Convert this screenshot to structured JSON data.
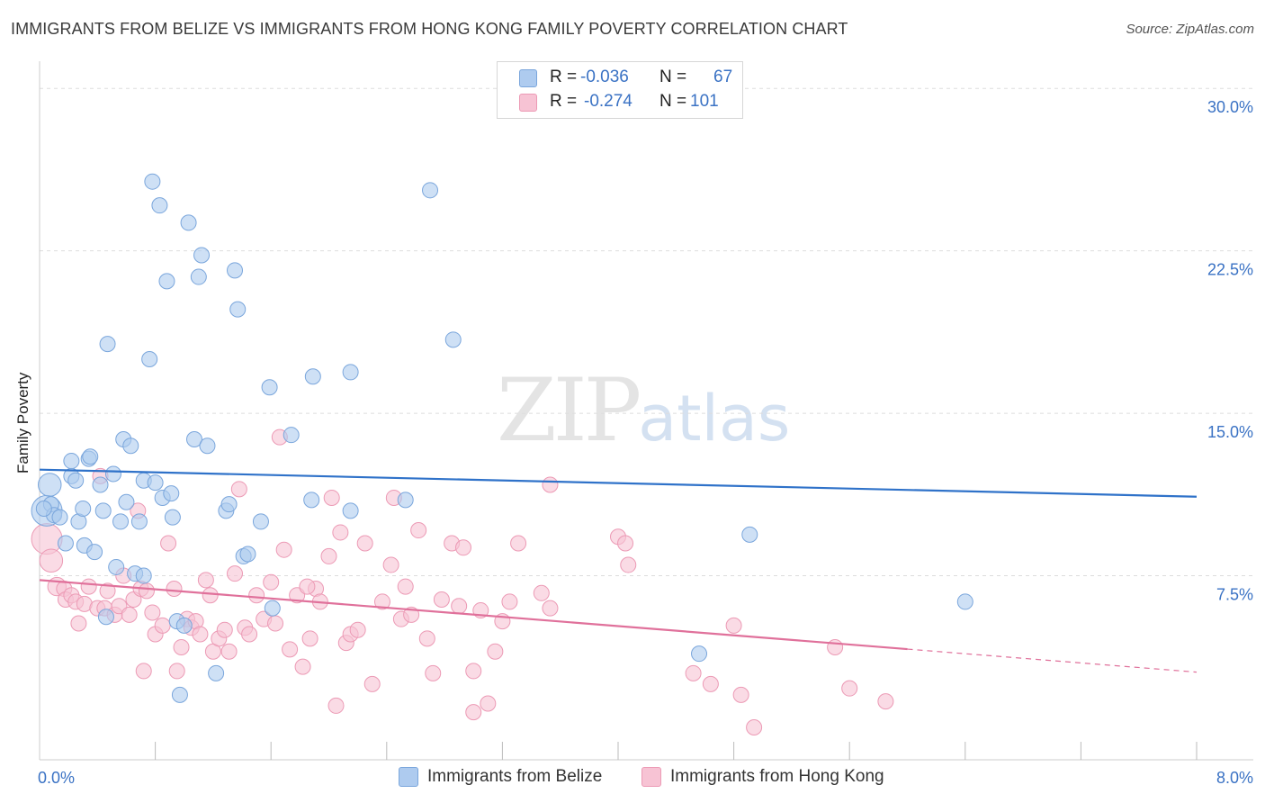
{
  "header": {
    "title": "IMMIGRANTS FROM BELIZE VS IMMIGRANTS FROM HONG KONG FAMILY POVERTY CORRELATION CHART",
    "source": "Source: ZipAtlas.com"
  },
  "watermark": {
    "zip": "ZIP",
    "atlas": "atlas"
  },
  "legend": {
    "rows": [
      {
        "r_label": "R =",
        "r_value": "-0.036",
        "n_label": "N =",
        "n_value": "67"
      },
      {
        "r_label": "R =",
        "r_value": "-0.274",
        "n_label": "N =",
        "n_value": "101"
      }
    ]
  },
  "colors": {
    "belize_fill": "#aecbef",
    "belize_stroke": "#7aa6dc",
    "belize_line": "#2f72c9",
    "hongkong_fill": "#f7c3d4",
    "hongkong_stroke": "#ec9ab5",
    "hongkong_line": "#e0719b",
    "axis_text": "#3a72c4",
    "grid": "#dddddd"
  },
  "chart_data": {
    "type": "scatter",
    "title": "IMMIGRANTS FROM BELIZE VS IMMIGRANTS FROM HONG KONG FAMILY POVERTY CORRELATION CHART",
    "xlabel": "",
    "ylabel": "Family Poverty",
    "xlim": [
      0,
      8
    ],
    "ylim": [
      0,
      30.8
    ],
    "x_tick_labels": [
      {
        "value": 0,
        "label": "0.0%"
      },
      {
        "value": 8,
        "label": "8.0%"
      }
    ],
    "y_tick_labels": [
      {
        "value": 7.5,
        "label": "7.5%"
      },
      {
        "value": 15,
        "label": "15.0%"
      },
      {
        "value": 22.5,
        "label": "22.5%"
      },
      {
        "value": 30,
        "label": "30.0%"
      }
    ],
    "x_minor_ticks": [
      0.8,
      1.6,
      2.4,
      3.2,
      4.0,
      4.8,
      5.6,
      6.4,
      7.2,
      8.0
    ],
    "series": [
      {
        "name": "Immigrants from Belize",
        "r": -0.036,
        "n": 67,
        "trend": {
          "x": [
            0,
            8
          ],
          "y": [
            12.4,
            11.15
          ],
          "dashed_from": null
        },
        "points": [
          {
            "x": 0.05,
            "y": 10.5,
            "s": 2
          },
          {
            "x": 0.07,
            "y": 11.7,
            "s": 1.5
          },
          {
            "x": 0.08,
            "y": 10.8,
            "s": 1
          },
          {
            "x": 0.1,
            "y": 10.3,
            "s": 1
          },
          {
            "x": 0.14,
            "y": 10.2,
            "s": 1
          },
          {
            "x": 0.18,
            "y": 9.0,
            "s": 1
          },
          {
            "x": 0.22,
            "y": 12.1,
            "s": 1
          },
          {
            "x": 0.22,
            "y": 12.8,
            "s": 1
          },
          {
            "x": 0.25,
            "y": 11.9,
            "s": 1
          },
          {
            "x": 0.27,
            "y": 10.0,
            "s": 1
          },
          {
            "x": 0.3,
            "y": 10.6,
            "s": 1
          },
          {
            "x": 0.31,
            "y": 8.9,
            "s": 1
          },
          {
            "x": 0.34,
            "y": 12.9,
            "s": 1
          },
          {
            "x": 0.35,
            "y": 13.0,
            "s": 1
          },
          {
            "x": 0.38,
            "y": 8.6,
            "s": 1
          },
          {
            "x": 0.42,
            "y": 11.7,
            "s": 1
          },
          {
            "x": 0.44,
            "y": 10.5,
            "s": 1
          },
          {
            "x": 0.46,
            "y": 5.6,
            "s": 1
          },
          {
            "x": 0.47,
            "y": 18.2,
            "s": 1
          },
          {
            "x": 0.51,
            "y": 12.2,
            "s": 1
          },
          {
            "x": 0.53,
            "y": 7.9,
            "s": 1
          },
          {
            "x": 0.56,
            "y": 10.0,
            "s": 1
          },
          {
            "x": 0.58,
            "y": 13.8,
            "s": 1
          },
          {
            "x": 0.6,
            "y": 10.9,
            "s": 1
          },
          {
            "x": 0.63,
            "y": 13.5,
            "s": 1
          },
          {
            "x": 0.66,
            "y": 7.6,
            "s": 1
          },
          {
            "x": 0.69,
            "y": 10.0,
            "s": 1
          },
          {
            "x": 0.72,
            "y": 7.5,
            "s": 1
          },
          {
            "x": 0.72,
            "y": 11.9,
            "s": 1
          },
          {
            "x": 0.76,
            "y": 17.5,
            "s": 1
          },
          {
            "x": 0.78,
            "y": 25.7,
            "s": 1
          },
          {
            "x": 0.8,
            "y": 11.8,
            "s": 1
          },
          {
            "x": 0.83,
            "y": 24.6,
            "s": 1
          },
          {
            "x": 0.85,
            "y": 11.1,
            "s": 1
          },
          {
            "x": 0.88,
            "y": 21.1,
            "s": 1
          },
          {
            "x": 0.91,
            "y": 11.3,
            "s": 1
          },
          {
            "x": 0.92,
            "y": 10.2,
            "s": 1
          },
          {
            "x": 0.95,
            "y": 5.4,
            "s": 1
          },
          {
            "x": 0.97,
            "y": 2.0,
            "s": 1
          },
          {
            "x": 1.0,
            "y": 5.2,
            "s": 1
          },
          {
            "x": 1.03,
            "y": 23.8,
            "s": 1
          },
          {
            "x": 1.07,
            "y": 13.8,
            "s": 1
          },
          {
            "x": 1.1,
            "y": 21.3,
            "s": 1
          },
          {
            "x": 1.12,
            "y": 22.3,
            "s": 1
          },
          {
            "x": 1.16,
            "y": 13.5,
            "s": 1
          },
          {
            "x": 1.22,
            "y": 3.0,
            "s": 1
          },
          {
            "x": 1.29,
            "y": 10.5,
            "s": 1
          },
          {
            "x": 1.31,
            "y": 10.8,
            "s": 1
          },
          {
            "x": 1.35,
            "y": 21.6,
            "s": 1
          },
          {
            "x": 1.37,
            "y": 19.8,
            "s": 1
          },
          {
            "x": 1.41,
            "y": 8.4,
            "s": 1
          },
          {
            "x": 1.44,
            "y": 8.5,
            "s": 1
          },
          {
            "x": 1.53,
            "y": 10.0,
            "s": 1
          },
          {
            "x": 1.61,
            "y": 6.0,
            "s": 1
          },
          {
            "x": 1.59,
            "y": 16.2,
            "s": 1
          },
          {
            "x": 1.74,
            "y": 14.0,
            "s": 1
          },
          {
            "x": 1.88,
            "y": 11.0,
            "s": 1
          },
          {
            "x": 1.89,
            "y": 16.7,
            "s": 1
          },
          {
            "x": 2.15,
            "y": 16.9,
            "s": 1
          },
          {
            "x": 2.15,
            "y": 10.5,
            "s": 1
          },
          {
            "x": 2.53,
            "y": 11.0,
            "s": 1
          },
          {
            "x": 2.7,
            "y": 25.3,
            "s": 1
          },
          {
            "x": 2.86,
            "y": 18.4,
            "s": 1
          },
          {
            "x": 4.91,
            "y": 9.4,
            "s": 1
          },
          {
            "x": 4.56,
            "y": 3.9,
            "s": 1
          },
          {
            "x": 6.4,
            "y": 6.3,
            "s": 1
          },
          {
            "x": 0.03,
            "y": 10.6,
            "s": 1
          }
        ]
      },
      {
        "name": "Immigrants from Hong Kong",
        "r": -0.274,
        "n": 101,
        "trend": {
          "x": [
            0,
            8
          ],
          "y": [
            7.3,
            3.05
          ],
          "dashed_from": 6.0
        },
        "points": [
          {
            "x": 0.05,
            "y": 9.2,
            "s": 2
          },
          {
            "x": 0.08,
            "y": 8.2,
            "s": 1.5
          },
          {
            "x": 0.12,
            "y": 7.0,
            "s": 1.2
          },
          {
            "x": 0.17,
            "y": 6.9,
            "s": 1
          },
          {
            "x": 0.18,
            "y": 6.4,
            "s": 1
          },
          {
            "x": 0.22,
            "y": 6.6,
            "s": 1
          },
          {
            "x": 0.25,
            "y": 6.3,
            "s": 1
          },
          {
            "x": 0.27,
            "y": 5.3,
            "s": 1
          },
          {
            "x": 0.31,
            "y": 6.2,
            "s": 1
          },
          {
            "x": 0.34,
            "y": 7.0,
            "s": 1
          },
          {
            "x": 0.4,
            "y": 6.0,
            "s": 1
          },
          {
            "x": 0.42,
            "y": 12.1,
            "s": 1
          },
          {
            "x": 0.45,
            "y": 6.0,
            "s": 1
          },
          {
            "x": 0.47,
            "y": 6.8,
            "s": 1
          },
          {
            "x": 0.52,
            "y": 5.7,
            "s": 1
          },
          {
            "x": 0.55,
            "y": 6.1,
            "s": 1
          },
          {
            "x": 0.58,
            "y": 7.5,
            "s": 1
          },
          {
            "x": 0.62,
            "y": 5.7,
            "s": 1
          },
          {
            "x": 0.65,
            "y": 6.4,
            "s": 1
          },
          {
            "x": 0.68,
            "y": 10.5,
            "s": 1
          },
          {
            "x": 0.7,
            "y": 6.9,
            "s": 1
          },
          {
            "x": 0.72,
            "y": 3.1,
            "s": 1
          },
          {
            "x": 0.74,
            "y": 6.8,
            "s": 1
          },
          {
            "x": 0.78,
            "y": 5.8,
            "s": 1
          },
          {
            "x": 0.8,
            "y": 4.8,
            "s": 1
          },
          {
            "x": 0.85,
            "y": 5.2,
            "s": 1
          },
          {
            "x": 0.89,
            "y": 9.0,
            "s": 1
          },
          {
            "x": 0.93,
            "y": 6.9,
            "s": 1
          },
          {
            "x": 0.95,
            "y": 3.1,
            "s": 1
          },
          {
            "x": 0.98,
            "y": 4.2,
            "s": 1
          },
          {
            "x": 1.02,
            "y": 5.5,
            "s": 1
          },
          {
            "x": 1.05,
            "y": 5.1,
            "s": 1
          },
          {
            "x": 1.08,
            "y": 5.4,
            "s": 1
          },
          {
            "x": 1.11,
            "y": 4.8,
            "s": 1
          },
          {
            "x": 1.15,
            "y": 7.3,
            "s": 1
          },
          {
            "x": 1.18,
            "y": 6.6,
            "s": 1
          },
          {
            "x": 1.2,
            "y": 4.0,
            "s": 1
          },
          {
            "x": 1.24,
            "y": 4.6,
            "s": 1
          },
          {
            "x": 1.28,
            "y": 5.0,
            "s": 1
          },
          {
            "x": 1.31,
            "y": 4.0,
            "s": 1
          },
          {
            "x": 1.35,
            "y": 7.6,
            "s": 1
          },
          {
            "x": 1.38,
            "y": 11.5,
            "s": 1
          },
          {
            "x": 1.42,
            "y": 5.1,
            "s": 1
          },
          {
            "x": 1.45,
            "y": 4.8,
            "s": 1
          },
          {
            "x": 1.5,
            "y": 6.6,
            "s": 1
          },
          {
            "x": 1.55,
            "y": 5.5,
            "s": 1
          },
          {
            "x": 1.6,
            "y": 7.2,
            "s": 1
          },
          {
            "x": 1.63,
            "y": 5.3,
            "s": 1
          },
          {
            "x": 1.66,
            "y": 13.9,
            "s": 1
          },
          {
            "x": 1.69,
            "y": 8.7,
            "s": 1
          },
          {
            "x": 1.73,
            "y": 4.1,
            "s": 1
          },
          {
            "x": 1.78,
            "y": 6.6,
            "s": 1
          },
          {
            "x": 1.82,
            "y": 3.3,
            "s": 1
          },
          {
            "x": 1.87,
            "y": 4.6,
            "s": 1
          },
          {
            "x": 1.91,
            "y": 6.9,
            "s": 1
          },
          {
            "x": 1.94,
            "y": 6.3,
            "s": 1
          },
          {
            "x": 2.0,
            "y": 8.4,
            "s": 1
          },
          {
            "x": 2.02,
            "y": 11.1,
            "s": 1
          },
          {
            "x": 2.05,
            "y": 1.5,
            "s": 1
          },
          {
            "x": 2.08,
            "y": 9.5,
            "s": 1
          },
          {
            "x": 2.12,
            "y": 4.4,
            "s": 1
          },
          {
            "x": 2.15,
            "y": 4.8,
            "s": 1
          },
          {
            "x": 2.2,
            "y": 5.0,
            "s": 1
          },
          {
            "x": 2.25,
            "y": 9.0,
            "s": 1
          },
          {
            "x": 2.3,
            "y": 2.5,
            "s": 1
          },
          {
            "x": 2.37,
            "y": 6.3,
            "s": 1
          },
          {
            "x": 2.43,
            "y": 8.0,
            "s": 1
          },
          {
            "x": 2.45,
            "y": 11.1,
            "s": 1
          },
          {
            "x": 2.5,
            "y": 5.5,
            "s": 1
          },
          {
            "x": 2.53,
            "y": 7.0,
            "s": 1
          },
          {
            "x": 2.57,
            "y": 5.7,
            "s": 1
          },
          {
            "x": 2.62,
            "y": 9.6,
            "s": 1
          },
          {
            "x": 2.68,
            "y": 4.6,
            "s": 1
          },
          {
            "x": 2.72,
            "y": 3.0,
            "s": 1
          },
          {
            "x": 2.78,
            "y": 6.4,
            "s": 1
          },
          {
            "x": 2.85,
            "y": 9.0,
            "s": 1
          },
          {
            "x": 2.9,
            "y": 6.1,
            "s": 1
          },
          {
            "x": 2.93,
            "y": 8.8,
            "s": 1
          },
          {
            "x": 3.0,
            "y": 3.1,
            "s": 1
          },
          {
            "x": 3.05,
            "y": 5.9,
            "s": 1
          },
          {
            "x": 3.1,
            "y": 1.6,
            "s": 1
          },
          {
            "x": 3.15,
            "y": 4.0,
            "s": 1
          },
          {
            "x": 3.2,
            "y": 5.4,
            "s": 1
          },
          {
            "x": 3.25,
            "y": 6.3,
            "s": 1
          },
          {
            "x": 3.31,
            "y": 9.0,
            "s": 1
          },
          {
            "x": 3.47,
            "y": 6.7,
            "s": 1
          },
          {
            "x": 3.53,
            "y": 6.0,
            "s": 1
          },
          {
            "x": 3.53,
            "y": 11.7,
            "s": 1
          },
          {
            "x": 3.0,
            "y": 1.2,
            "s": 1
          },
          {
            "x": 4.0,
            "y": 9.3,
            "s": 1
          },
          {
            "x": 4.05,
            "y": 9.0,
            "s": 1
          },
          {
            "x": 4.07,
            "y": 8.0,
            "s": 1
          },
          {
            "x": 4.52,
            "y": 3.0,
            "s": 1
          },
          {
            "x": 4.64,
            "y": 2.5,
            "s": 1
          },
          {
            "x": 4.8,
            "y": 5.2,
            "s": 1
          },
          {
            "x": 4.94,
            "y": 0.5,
            "s": 1
          },
          {
            "x": 5.6,
            "y": 2.3,
            "s": 1
          },
          {
            "x": 5.5,
            "y": 4.2,
            "s": 1
          },
          {
            "x": 4.85,
            "y": 2.0,
            "s": 1
          },
          {
            "x": 5.85,
            "y": 1.7,
            "s": 1
          },
          {
            "x": 1.85,
            "y": 7.0,
            "s": 1
          }
        ]
      }
    ]
  },
  "bottom_legend": {
    "belize_label": "Immigrants from Belize",
    "hongkong_label": "Immigrants from Hong Kong"
  }
}
